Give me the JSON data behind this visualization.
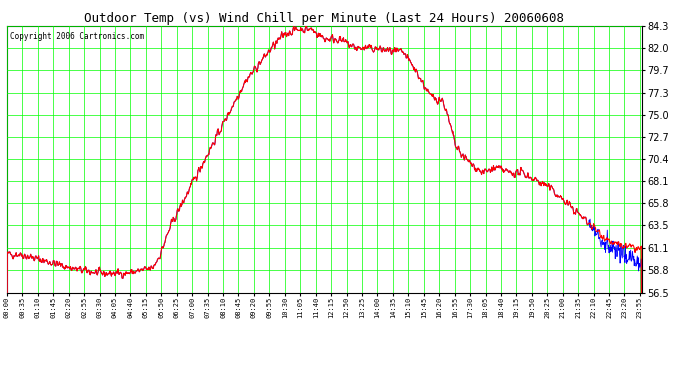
{
  "title": "Outdoor Temp (vs) Wind Chill per Minute (Last 24 Hours) 20060608",
  "copyright_text": "Copyright 2006 Cartronics.com",
  "background_color": "#ffffff",
  "plot_bg_color": "#ffffff",
  "grid_color": "#00ff00",
  "line_color_temp": "#ff0000",
  "line_color_windchill": "#0000ff",
  "ylim": [
    56.5,
    84.3
  ],
  "yticks": [
    56.5,
    58.8,
    61.1,
    63.5,
    65.8,
    68.1,
    70.4,
    72.7,
    75.0,
    77.3,
    79.7,
    82.0,
    84.3
  ],
  "x_tick_interval": 35,
  "figsize": [
    6.9,
    3.75
  ],
  "dpi": 100
}
